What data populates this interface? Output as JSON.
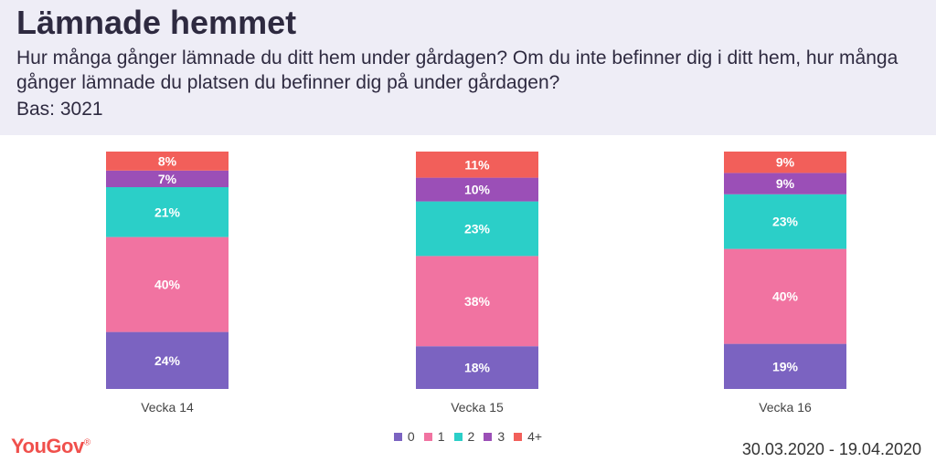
{
  "header": {
    "title": "Lämnade hemmet",
    "subtitle": "Hur många gånger lämnade du ditt hem under gårdagen?  Om du inte befinner dig i ditt hem, hur många gånger lämnade du platsen du befinner dig på under gårdagen?",
    "base": "Bas: 3021"
  },
  "footer": {
    "logo": "YouGov",
    "logo_mark": "®",
    "date_range": "30.03.2020 - 19.04.2020"
  },
  "chart_data": {
    "type": "bar",
    "stacked": true,
    "percent": true,
    "categories": [
      "Vecka 14",
      "Vecka 15",
      "Vecka 16"
    ],
    "series": [
      {
        "name": "0",
        "color": "#7b63c1",
        "values": [
          24,
          18,
          19
        ]
      },
      {
        "name": "1",
        "color": "#f173a1",
        "values": [
          40,
          38,
          40
        ]
      },
      {
        "name": "2",
        "color": "#2bcfc8",
        "values": [
          21,
          23,
          23
        ]
      },
      {
        "name": "3",
        "color": "#9b4fb7",
        "values": [
          7,
          10,
          9
        ]
      },
      {
        "name": "4+",
        "color": "#f25f5a",
        "values": [
          8,
          11,
          9
        ]
      }
    ],
    "legend_position": "bottom-center"
  }
}
